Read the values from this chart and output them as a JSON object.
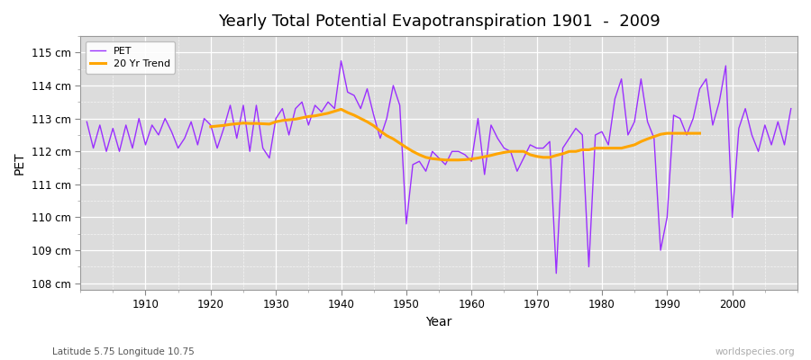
{
  "title": "Yearly Total Potential Evapotranspiration 1901  -  2009",
  "ylabel": "PET",
  "xlabel": "Year",
  "subtitle_left": "Latitude 5.75 Longitude 10.75",
  "subtitle_right": "worldspecies.org",
  "pet_color": "#9B30FF",
  "trend_color": "#FFA500",
  "background_color": "#DCDCDC",
  "ylim": [
    107.8,
    115.5
  ],
  "yticks": [
    108,
    109,
    110,
    111,
    112,
    113,
    114,
    115
  ],
  "ytick_labels": [
    "108 cm",
    "109 cm",
    "110 cm",
    "111 cm",
    "112 cm",
    "113 cm",
    "114 cm",
    "115 cm"
  ],
  "years": [
    1901,
    1902,
    1903,
    1904,
    1905,
    1906,
    1907,
    1908,
    1909,
    1910,
    1911,
    1912,
    1913,
    1914,
    1915,
    1916,
    1917,
    1918,
    1919,
    1920,
    1921,
    1922,
    1923,
    1924,
    1925,
    1926,
    1927,
    1928,
    1929,
    1930,
    1931,
    1932,
    1933,
    1934,
    1935,
    1936,
    1937,
    1938,
    1939,
    1940,
    1941,
    1942,
    1943,
    1944,
    1945,
    1946,
    1947,
    1948,
    1949,
    1950,
    1951,
    1952,
    1953,
    1954,
    1955,
    1956,
    1957,
    1958,
    1959,
    1960,
    1961,
    1962,
    1963,
    1964,
    1965,
    1966,
    1967,
    1968,
    1969,
    1970,
    1971,
    1972,
    1973,
    1974,
    1975,
    1976,
    1977,
    1978,
    1979,
    1980,
    1981,
    1982,
    1983,
    1984,
    1985,
    1986,
    1987,
    1988,
    1989,
    1990,
    1991,
    1992,
    1993,
    1994,
    1995,
    1996,
    1997,
    1998,
    1999,
    2000,
    2001,
    2002,
    2003,
    2004,
    2005,
    2006,
    2007,
    2008,
    2009
  ],
  "pet_values": [
    112.9,
    112.1,
    112.8,
    112.0,
    112.7,
    112.0,
    112.8,
    112.1,
    113.0,
    112.2,
    112.8,
    112.5,
    113.0,
    112.6,
    112.1,
    112.4,
    112.9,
    112.2,
    113.0,
    112.8,
    112.1,
    112.7,
    113.4,
    112.4,
    113.4,
    112.0,
    113.4,
    112.1,
    111.8,
    113.0,
    113.3,
    112.5,
    113.3,
    113.5,
    112.8,
    113.4,
    113.2,
    113.5,
    113.3,
    114.75,
    113.8,
    113.7,
    113.3,
    113.9,
    113.1,
    112.4,
    113.0,
    114.0,
    113.4,
    109.8,
    111.6,
    111.7,
    111.4,
    112.0,
    111.8,
    111.6,
    112.0,
    112.0,
    111.9,
    111.7,
    113.0,
    111.3,
    112.8,
    112.4,
    112.1,
    112.0,
    111.4,
    111.8,
    112.2,
    112.1,
    112.1,
    112.3,
    108.3,
    112.1,
    112.4,
    112.7,
    112.5,
    108.5,
    112.5,
    112.6,
    112.2,
    113.6,
    114.2,
    112.5,
    112.9,
    114.2,
    112.9,
    112.4,
    109.0,
    110.0,
    113.1,
    113.0,
    112.5,
    113.0,
    113.9,
    114.2,
    112.8,
    113.5,
    114.6,
    110.0,
    112.7,
    113.3,
    112.5,
    112.0,
    112.8,
    112.2,
    112.9,
    112.2,
    113.3
  ],
  "trend_values": [
    null,
    null,
    null,
    null,
    null,
    null,
    null,
    null,
    null,
    null,
    null,
    null,
    null,
    null,
    null,
    null,
    null,
    null,
    null,
    112.75,
    112.77,
    112.79,
    112.82,
    112.84,
    112.86,
    112.85,
    112.85,
    112.84,
    112.83,
    112.9,
    112.94,
    112.96,
    112.98,
    113.02,
    113.06,
    113.08,
    113.12,
    113.16,
    113.22,
    113.28,
    113.18,
    113.1,
    113.0,
    112.9,
    112.78,
    112.62,
    112.48,
    112.38,
    112.25,
    112.12,
    112.0,
    111.9,
    111.82,
    111.78,
    111.76,
    111.74,
    111.74,
    111.74,
    111.75,
    111.77,
    111.8,
    111.84,
    111.88,
    111.93,
    111.97,
    112.0,
    112.0,
    112.0,
    111.9,
    111.85,
    111.82,
    111.82,
    111.88,
    111.93,
    112.0,
    112.0,
    112.05,
    112.05,
    112.1,
    112.1,
    112.1,
    112.1,
    112.1,
    112.15,
    112.2,
    112.3,
    112.38,
    112.45,
    112.52,
    112.55,
    112.55,
    112.55,
    112.55,
    112.55,
    112.55,
    null,
    null,
    null,
    null,
    null,
    null,
    null,
    null,
    null,
    null,
    null,
    null,
    null
  ]
}
